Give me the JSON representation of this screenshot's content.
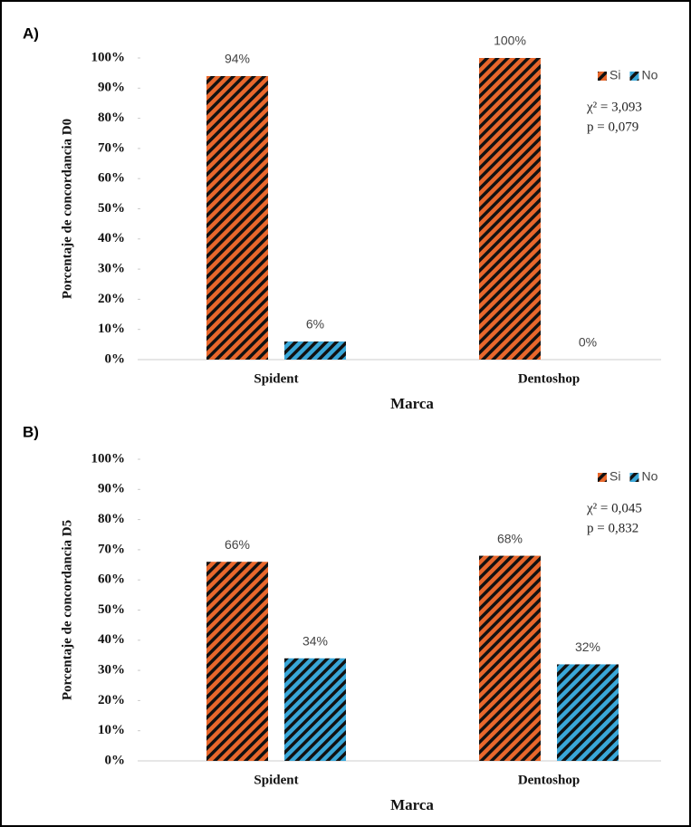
{
  "chart_data": [
    {
      "type": "bar",
      "panel_label": "A)",
      "y_label": "Porcentaje de concordancia D0",
      "x_label": "Marca",
      "categories": [
        "Spident",
        "Dentoshop"
      ],
      "series": [
        {
          "name": "Si",
          "color": "#e8672c",
          "values": [
            94,
            100
          ],
          "value_labels": [
            "94%",
            "100%"
          ]
        },
        {
          "name": "No",
          "color": "#3aa7d8",
          "values": [
            6,
            0
          ],
          "value_labels": [
            "6%",
            "0%"
          ]
        }
      ],
      "ylim": [
        0,
        100
      ],
      "yticks": [
        {
          "value": 0,
          "label": "0%"
        },
        {
          "value": 10,
          "label": "10%"
        },
        {
          "value": 20,
          "label": "20%"
        },
        {
          "value": 30,
          "label": "30%"
        },
        {
          "value": 40,
          "label": "40%"
        },
        {
          "value": 50,
          "label": "50%"
        },
        {
          "value": 60,
          "label": "60%"
        },
        {
          "value": 70,
          "label": "70%"
        },
        {
          "value": 80,
          "label": "80%"
        },
        {
          "value": 90,
          "label": "90%"
        },
        {
          "value": 100,
          "label": "100%"
        }
      ],
      "annotations": [
        "χ² = 3,093",
        "p = 0,079"
      ],
      "legend": "upper right",
      "grid": false
    },
    {
      "type": "bar",
      "panel_label": "B)",
      "y_label": "Porcentaje de concordancia D5",
      "x_label": "Marca",
      "categories": [
        "Spident",
        "Dentoshop"
      ],
      "series": [
        {
          "name": "Si",
          "color": "#e8672c",
          "values": [
            66,
            68
          ],
          "value_labels": [
            "66%",
            "68%"
          ]
        },
        {
          "name": "No",
          "color": "#3aa7d8",
          "values": [
            34,
            32
          ],
          "value_labels": [
            "34%",
            "32%"
          ]
        }
      ],
      "ylim": [
        0,
        100
      ],
      "yticks": [
        {
          "value": 0,
          "label": "0%"
        },
        {
          "value": 10,
          "label": "10%"
        },
        {
          "value": 20,
          "label": "20%"
        },
        {
          "value": 30,
          "label": "30%"
        },
        {
          "value": 40,
          "label": "40%"
        },
        {
          "value": 50,
          "label": "50%"
        },
        {
          "value": 60,
          "label": "60%"
        },
        {
          "value": 70,
          "label": "70%"
        },
        {
          "value": 80,
          "label": "80%"
        },
        {
          "value": 90,
          "label": "90%"
        },
        {
          "value": 100,
          "label": "100%"
        }
      ],
      "annotations": [
        "χ² = 0,045",
        "p = 0,832"
      ],
      "legend": "upper right",
      "grid": false
    }
  ]
}
